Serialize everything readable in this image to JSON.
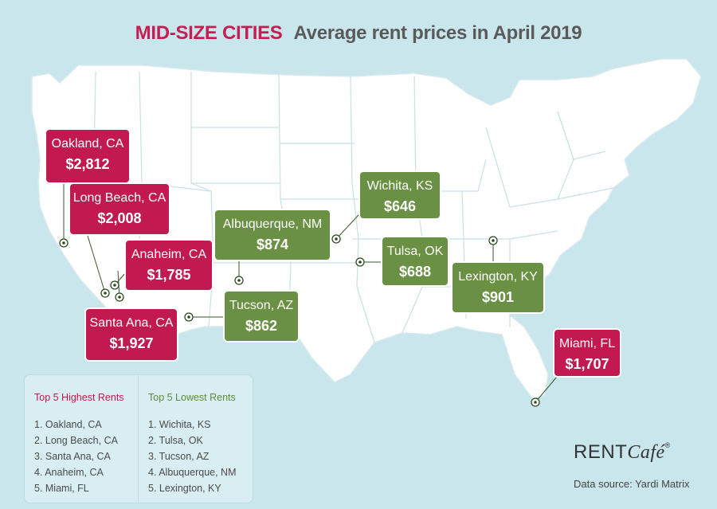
{
  "title": {
    "highlight": "MID-SIZE CITIES",
    "rest": "Average rent prices in April 2019"
  },
  "colors": {
    "high": "#c21a50",
    "low": "#6a9044",
    "water": "#c9e6ec",
    "land": "#ffffff"
  },
  "callouts": {
    "oakland": {
      "city": "Oakland, CA",
      "price": "$2,812"
    },
    "longbeach": {
      "city": "Long Beach, CA",
      "price": "$2,008"
    },
    "anaheim": {
      "city": "Anaheim, CA",
      "price": "$1,785"
    },
    "santaana": {
      "city": "Santa Ana, CA",
      "price": "$1,927"
    },
    "miami": {
      "city": "Miami, FL",
      "price": "$1,707"
    },
    "wichita": {
      "city": "Wichita, KS",
      "price": "$646"
    },
    "albuquerque": {
      "city": "Albuquerque, NM",
      "price": "$874"
    },
    "tulsa": {
      "city": "Tulsa, OK",
      "price": "$688"
    },
    "tucson": {
      "city": "Tucson, AZ",
      "price": "$862"
    },
    "lexington": {
      "city": "Lexington, KY",
      "price": "$901"
    }
  },
  "legend": {
    "highest": {
      "heading": "Top 5 Highest Rents",
      "items": [
        "1. Oakland, CA",
        "2. Long Beach, CA",
        "3. Santa Ana, CA",
        "4. Anaheim, CA",
        "5. Miami, FL"
      ]
    },
    "lowest": {
      "heading": "Top 5 Lowest Rents",
      "items": [
        "1. Wichita, KS",
        "2. Tulsa, OK",
        "3. Tucson, AZ",
        "4. Albuquerque, NM",
        "5. Lexington, KY"
      ]
    }
  },
  "brand": {
    "rent": "RENT",
    "cafe": "Café",
    "reg": "®"
  },
  "source": "Data source:  Yardi Matrix"
}
